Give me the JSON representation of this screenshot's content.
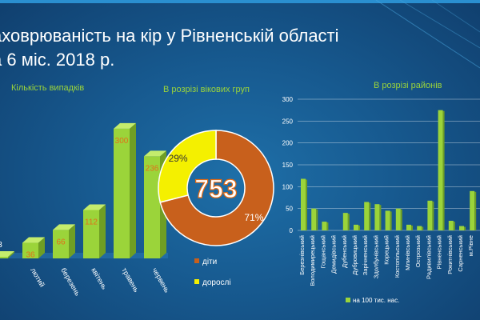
{
  "slide": {
    "title_line1": "аховрюваність на кір у Рівненській області",
    "title_line2": "а 6 міс. 2018 р.",
    "colors": {
      "lime": "#9bd43a",
      "orange": "#c8601c",
      "yellow": "#f4f000",
      "data_label_orange": "#e0701a"
    }
  },
  "chart_data": [
    {
      "type": "bar",
      "title": "Кількість випадків",
      "categories": [
        "",
        "лютий",
        "березень",
        "квітень",
        "травень",
        "червень"
      ],
      "values": [
        3,
        36,
        66,
        112,
        300,
        236
      ],
      "data_labels": [
        "3",
        "36",
        "66",
        "112",
        "300",
        "236"
      ],
      "ylim": [
        0,
        320
      ],
      "style": "3d-bars"
    },
    {
      "type": "pie",
      "title": "В розрізі вікових груп",
      "center_label": "753",
      "slices": [
        {
          "name": "діти",
          "percent": 71,
          "label": "71%",
          "color": "#c8601c"
        },
        {
          "name": "дорослі",
          "percent": 29,
          "label": "29%",
          "color": "#f4f000"
        }
      ],
      "legend_position": "bottom"
    },
    {
      "type": "bar",
      "title": "В розрізі районів",
      "categories": [
        "Березнівський",
        "Володимирецький",
        "Гощанський",
        "Демидівський",
        "Дубенський",
        "Дубровицький",
        "Зарічненський",
        "Здолбунівський",
        "Корецький",
        "Костопільський",
        "Млинівський",
        "Острозький",
        "Радивилівський",
        "Рівненський",
        "Рокитнівський",
        "Сарненський",
        "м.Рівне"
      ],
      "series": [
        {
          "name": "на 100 тис. нас.",
          "values": [
            118,
            50,
            20,
            0,
            40,
            13,
            65,
            60,
            45,
            50,
            13,
            10,
            68,
            275,
            22,
            10,
            90
          ]
        }
      ],
      "yticks": [
        "0",
        "50",
        "100",
        "150",
        "200",
        "250",
        "300"
      ],
      "ylim": [
        0,
        300
      ],
      "grid": true,
      "legend_position": "bottom"
    }
  ]
}
